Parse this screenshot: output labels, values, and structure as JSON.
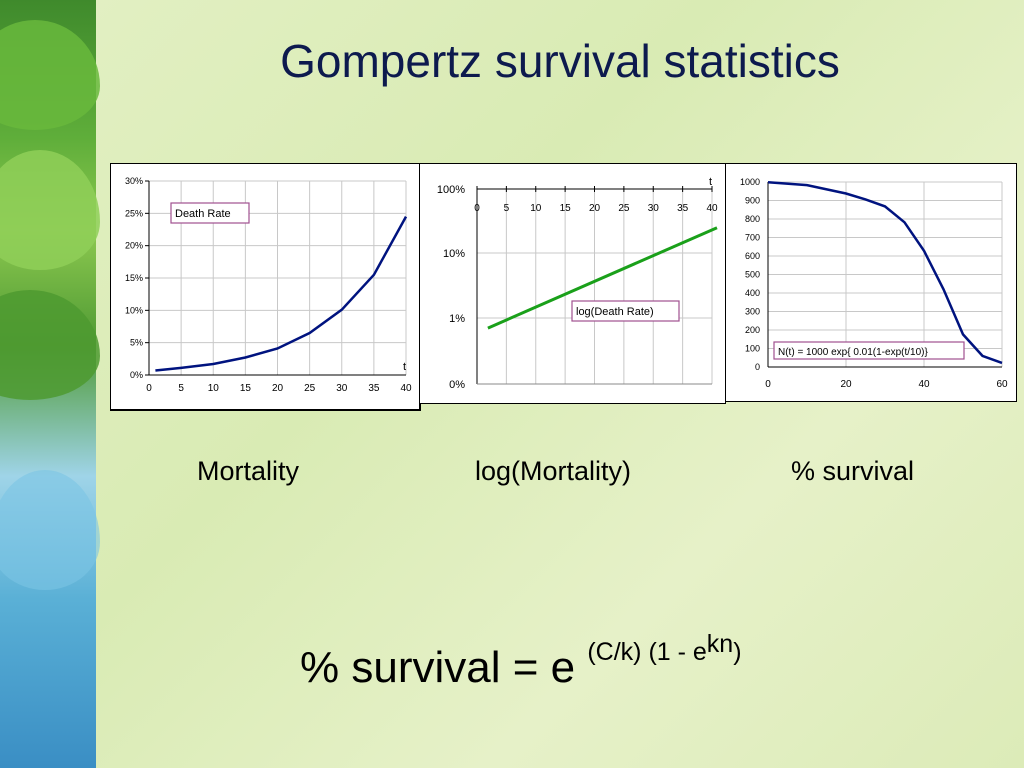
{
  "slide": {
    "title": "Gompertz survival statistics",
    "captions": [
      "Mortality",
      "log(Mortality)",
      "% survival"
    ],
    "formula": {
      "lhs": "% survival = e",
      "exp_part1": "(C/k) (1 - e",
      "exp_sup": "kn",
      "exp_close": ")"
    }
  },
  "colors": {
    "title": "#0d1a4e",
    "series_blue": "#00137f",
    "series_green": "#1aa01a",
    "label_border": "#a05090"
  },
  "chart_data": [
    {
      "type": "line",
      "title": "",
      "legend_label": "Death Rate",
      "xlabel": "t",
      "ylabel": "",
      "x_ticks": [
        "0",
        "5",
        "10",
        "15",
        "20",
        "25",
        "30",
        "35",
        "40"
      ],
      "y_ticks": [
        "0%",
        "5%",
        "10%",
        "15%",
        "20%",
        "25%",
        "30%"
      ],
      "xlim": [
        0,
        40
      ],
      "ylim": [
        0,
        30
      ],
      "grid": true,
      "series": [
        {
          "values_x": [
            1,
            5,
            10,
            15,
            20,
            25,
            30,
            35,
            40
          ],
          "values_y": [
            0.7,
            1.1,
            1.7,
            2.7,
            4.1,
            6.5,
            10.1,
            15.5,
            24.5
          ]
        }
      ]
    },
    {
      "type": "line",
      "title": "",
      "legend_label": "log(Death Rate)",
      "xlabel": "t",
      "ylabel": "",
      "x_ticks": [
        "0",
        "5",
        "10",
        "15",
        "20",
        "25",
        "30",
        "35",
        "40"
      ],
      "y_ticks": [
        "0%",
        "1%",
        "10%",
        "100%"
      ],
      "y_scale": "log",
      "xlim": [
        0,
        40
      ],
      "grid": true,
      "series": [
        {
          "values_x": [
            1,
            40
          ],
          "values_y": [
            0.7,
            24.5
          ]
        }
      ]
    },
    {
      "type": "line",
      "title": "",
      "legend_label": "N(t) = 1000 exp{ 0.01(1-exp(t/10)}",
      "xlabel": "",
      "ylabel": "",
      "x_ticks": [
        "0",
        "20",
        "40",
        "60"
      ],
      "y_ticks": [
        "0",
        "100",
        "200",
        "300",
        "400",
        "500",
        "600",
        "700",
        "800",
        "900",
        "1000"
      ],
      "xlim": [
        0,
        60
      ],
      "ylim": [
        0,
        1000
      ],
      "grid": true,
      "series": [
        {
          "values_x": [
            0,
            10,
            20,
            25,
            30,
            35,
            40,
            45,
            50,
            55,
            60
          ],
          "values_y": [
            999,
            983,
            938,
            906,
            868,
            782,
            628,
            420,
            176,
            60,
            22
          ]
        }
      ]
    }
  ]
}
